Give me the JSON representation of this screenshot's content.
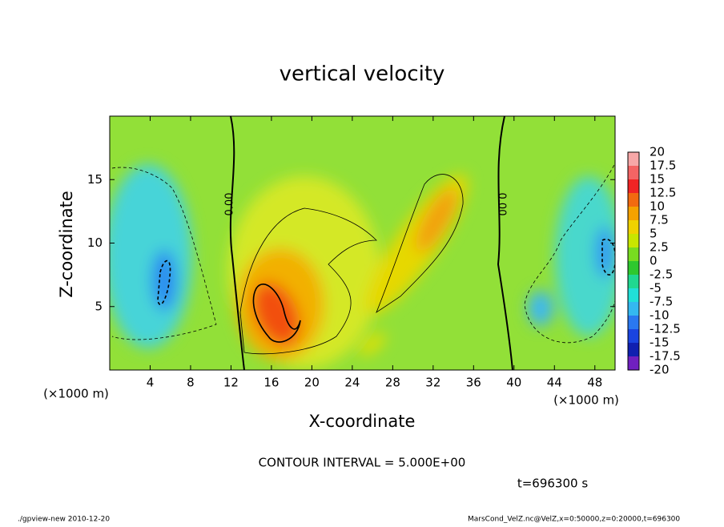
{
  "chart_data": {
    "type": "contour",
    "title": "vertical velocity",
    "xlabel": "X-coordinate",
    "ylabel": "Z-coordinate",
    "x_unit": "(×1000 m)",
    "xlim": [
      0,
      50
    ],
    "ylim": [
      0,
      20
    ],
    "xticks": [
      4,
      8,
      12,
      16,
      20,
      24,
      28,
      32,
      36,
      40,
      44,
      48
    ],
    "yticks": [
      5,
      10,
      15
    ],
    "levels": [
      20,
      17.5,
      15,
      12.5,
      10,
      7.5,
      5,
      2.5,
      0,
      -2.5,
      -5,
      -7.5,
      -10,
      -12.5,
      -15,
      -17.5,
      -20
    ],
    "level_colors": [
      "#f7a8a8",
      "#f46464",
      "#f02424",
      "#f26a10",
      "#f5a200",
      "#f0d200",
      "#c8e600",
      "#78dc20",
      "#2ec82e",
      "#20d890",
      "#20e0d8",
      "#34b8f0",
      "#2a78f0",
      "#1a44e0",
      "#1020b0",
      "#7020c0"
    ],
    "contour_labels": [
      "0.00",
      "0.00"
    ],
    "contour_interval": "CONTOUR INTERVAL = 5.000E+00",
    "time_label": "t=696300 s",
    "footer_left": "./gpview-new  2010-12-20",
    "footer_right": "MarsCond_VelZ.nc@VelZ,x=0:50000,z=0:20000,t=696300"
  }
}
